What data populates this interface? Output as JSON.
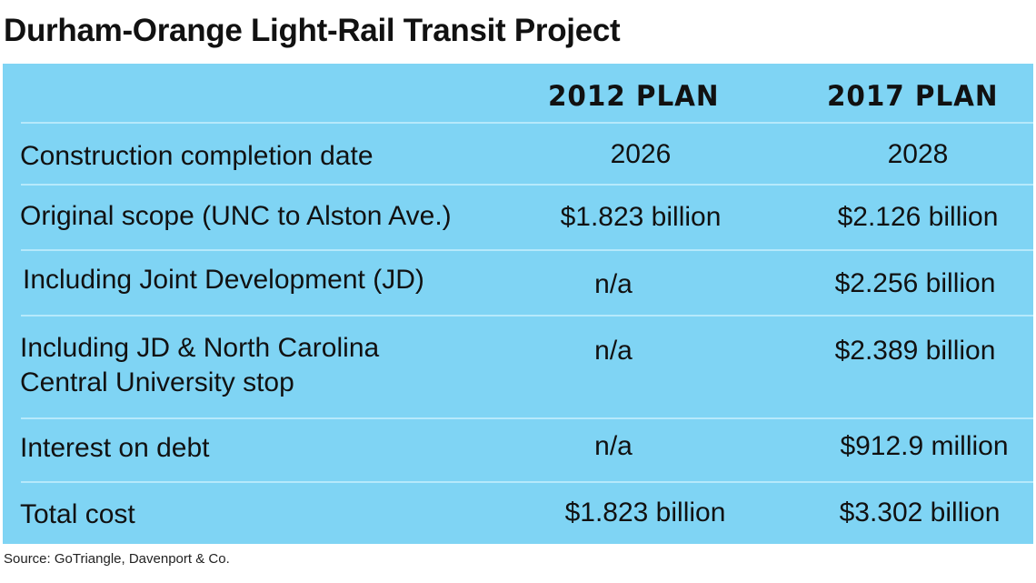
{
  "title": "Durham-Orange Light-Rail Transit Project",
  "columns": [
    "2012 PLAN",
    "2017 PLAN"
  ],
  "rows": [
    {
      "label": "Construction completion date",
      "plan_2012": "2026",
      "plan_2017": "2028"
    },
    {
      "label": "Original scope (UNC to Alston Ave.)",
      "plan_2012": "$1.823 billion",
      "plan_2017": "$2.126 billion"
    },
    {
      "label": "Including Joint Development (JD)",
      "plan_2012": "n/a",
      "plan_2017": "$2.256 billion"
    },
    {
      "label": "Including JD & North Carolina",
      "label_line2": "Central University stop",
      "plan_2012": "n/a",
      "plan_2017": "$2.389 billion"
    },
    {
      "label": "Interest on debt",
      "plan_2012": "n/a",
      "plan_2017": "$912.9 million"
    },
    {
      "label": "Total cost",
      "plan_2012": "$1.823 billion",
      "plan_2017": "$3.302 billion"
    }
  ],
  "source": "Source: GoTriangle, Davenport & Co.",
  "colors": {
    "table_background": "#7fd4f4",
    "separator": "#b6e9fb"
  }
}
